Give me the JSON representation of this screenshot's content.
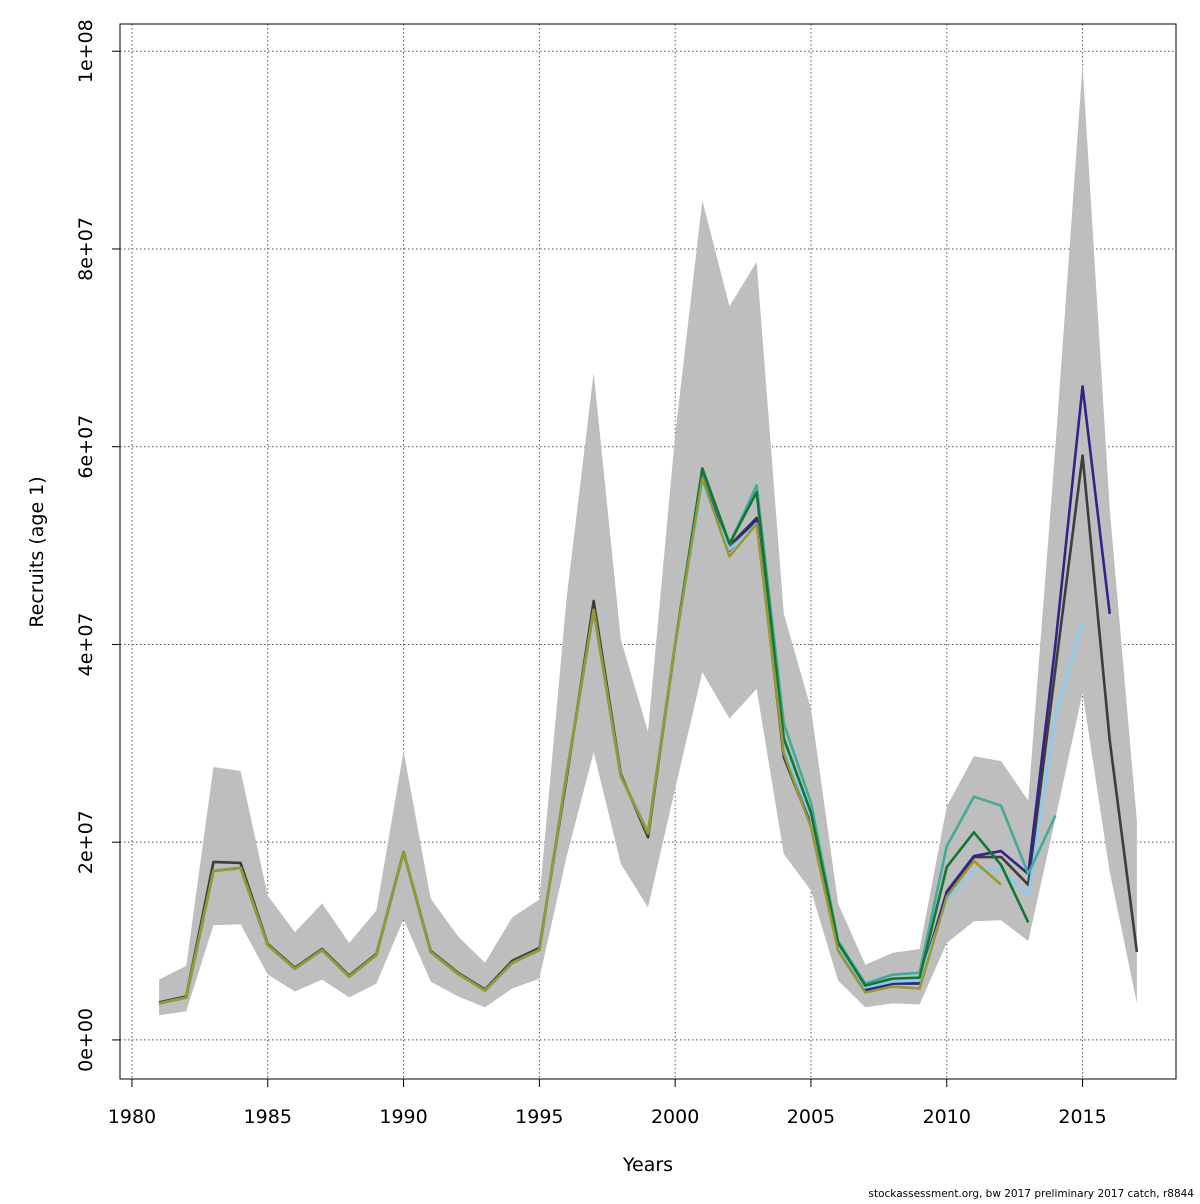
{
  "chart_data": {
    "type": "line",
    "title": "",
    "xlabel": "Years",
    "ylabel": "Recruits (age 1)",
    "xlim": [
      1981,
      2017
    ],
    "ylim": [
      0,
      98800000.0
    ],
    "grid": true,
    "legend": "none",
    "x_ticks": [
      1980,
      1985,
      1990,
      1995,
      2000,
      2005,
      2010,
      2015
    ],
    "x_tick_labels": [
      "1980",
      "1985",
      "1990",
      "1995",
      "2000",
      "2005",
      "2010",
      "2015"
    ],
    "y_ticks": [
      0,
      20000000.0,
      40000000.0,
      60000000.0,
      80000000.0,
      100000000.0
    ],
    "y_tick_labels": [
      "0e+00",
      "2e+07",
      "4e+07",
      "6e+07",
      "8e+07",
      "1e+08"
    ],
    "band": {
      "color": "#bebebe",
      "x_start": 1981,
      "upper": [
        6100000.0,
        7500000.0,
        27600000.0,
        27200000.0,
        14600000.0,
        10900000.0,
        13800000.0,
        9800000.0,
        13100000.0,
        29200000.0,
        14300000.0,
        10500000.0,
        7800000.0,
        12400000.0,
        14200000.0,
        44600000.0,
        67500000.0,
        40500000.0,
        31200000.0,
        61200000.0,
        84900000.0,
        74200000.0,
        78700000.0,
        43100000.0,
        33500000.0,
        13800000.0,
        7600000.0,
        8800000.0,
        9200000.0,
        23600000.0,
        28700000.0,
        28200000.0,
        24200000.0,
        60000000.0,
        98600000.0,
        53700000.0,
        22100000.0
      ],
      "lower": [
        2500000.0,
        2900000.0,
        11600000.0,
        11700000.0,
        6600000.0,
        4900000.0,
        6100000.0,
        4300000.0,
        5700000.0,
        12200000.0,
        5900000.0,
        4400000.0,
        3300000.0,
        5200000.0,
        6200000.0,
        18500000.0,
        29100000.0,
        17800000.0,
        13400000.0,
        25400000.0,
        37200000.0,
        32500000.0,
        35500000.0,
        18800000.0,
        15100000.0,
        6000000.0,
        3300000.0,
        3700000.0,
        3600000.0,
        9800000.0,
        12000000.0,
        12100000.0,
        10000000.0,
        22400000.0,
        35100000.0,
        17000000.0,
        3700000.0
      ]
    },
    "series": [
      {
        "color": "#3d3d3d",
        "x_start": 1981,
        "values": [
          3800000.0,
          4400000.0,
          18000000.0,
          17900000.0,
          9700000.0,
          7300000.0,
          9200000.0,
          6500000.0,
          8700000.0,
          19000000.0,
          9000000.0,
          6800000.0,
          5100000.0,
          8000000.0,
          9300000.0,
          26400000.0,
          44400000.0,
          26900000.0,
          20500000.0,
          40000000.0,
          57700000.0,
          50000000.0,
          52800000.0,
          28600000.0,
          21700000.0,
          9200000.0,
          5000000.0,
          5700000.0,
          6000000.0,
          14800000.0,
          18500000.0,
          18500000.0,
          15700000.0,
          37500000.0,
          59100000.0,
          30300000.0,
          8900000.0
        ]
      },
      {
        "color": "#332288",
        "x_start": 1981,
        "values": [
          3700000.0,
          4300000.0,
          17100000.0,
          17400000.0,
          9600000.0,
          7200000.0,
          9100000.0,
          6400000.0,
          8600000.0,
          19000000.0,
          8900000.0,
          6700000.0,
          5000000.0,
          7800000.0,
          9100000.0,
          26800000.0,
          43500000.0,
          26700000.0,
          20900000.0,
          40000000.0,
          57500000.0,
          49500000.0,
          52700000.0,
          28800000.0,
          22000000.0,
          9400000.0,
          5100000.0,
          5700000.0,
          5700000.0,
          15000000.0,
          18600000.0,
          19100000.0,
          16800000.0,
          40000000.0,
          66100000.0,
          43100000.0
        ]
      },
      {
        "color": "#88ccee",
        "x_start": 1981,
        "values": [
          3700000.0,
          4300000.0,
          17100000.0,
          17400000.0,
          9600000.0,
          7200000.0,
          9100000.0,
          6400000.0,
          8600000.0,
          19000000.0,
          8900000.0,
          6700000.0,
          5000000.0,
          7800000.0,
          9100000.0,
          26800000.0,
          43500000.0,
          26700000.0,
          20900000.0,
          40000000.0,
          56100000.0,
          49600000.0,
          52200000.0,
          29500000.0,
          22500000.0,
          9500000.0,
          5300000.0,
          5900000.0,
          6000000.0,
          14200000.0,
          17100000.0,
          17300000.0,
          14500000.0,
          32800000.0,
          42400000.0
        ]
      },
      {
        "color": "#44aa99",
        "x_start": 1981,
        "values": [
          3700000.0,
          4300000.0,
          17100000.0,
          17400000.0,
          9600000.0,
          7200000.0,
          9100000.0,
          6400000.0,
          8600000.0,
          19000000.0,
          8900000.0,
          6700000.0,
          5000000.0,
          7800000.0,
          9100000.0,
          26800000.0,
          43500000.0,
          26700000.0,
          20900000.0,
          40000000.0,
          57600000.0,
          50100000.0,
          56100000.0,
          32000000.0,
          24000000.0,
          10000000.0,
          5700000.0,
          6600000.0,
          6800000.0,
          19600000.0,
          24600000.0,
          23700000.0,
          16800000.0,
          22700000.0
        ]
      },
      {
        "color": "#117733",
        "x_start": 1981,
        "values": [
          3700000.0,
          4300000.0,
          17100000.0,
          17400000.0,
          9600000.0,
          7200000.0,
          9100000.0,
          6400000.0,
          8600000.0,
          19000000.0,
          8900000.0,
          6700000.0,
          5000000.0,
          7800000.0,
          9100000.0,
          26800000.0,
          43500000.0,
          26700000.0,
          20900000.0,
          40000000.0,
          57800000.0,
          50200000.0,
          55400000.0,
          30500000.0,
          23000000.0,
          9800000.0,
          5500000.0,
          6200000.0,
          6300000.0,
          17500000.0,
          21000000.0,
          17700000.0,
          11900000.0
        ]
      },
      {
        "color": "#999933",
        "x_start": 1981,
        "values": [
          3700000.0,
          4300000.0,
          17100000.0,
          17400000.0,
          9600000.0,
          7200000.0,
          9100000.0,
          6400000.0,
          8600000.0,
          19000000.0,
          8900000.0,
          6700000.0,
          5000000.0,
          7800000.0,
          9100000.0,
          26800000.0,
          43500000.0,
          26700000.0,
          20900000.0,
          40000000.0,
          56800000.0,
          48900000.0,
          52200000.0,
          29000000.0,
          21500000.0,
          9000000.0,
          4800000.0,
          5400000.0,
          5200000.0,
          14500000.0,
          18100000.0,
          15700000.0
        ]
      }
    ]
  },
  "footer": "stockassessment.org, bw  2017  preliminary  2017  catch, r8844"
}
